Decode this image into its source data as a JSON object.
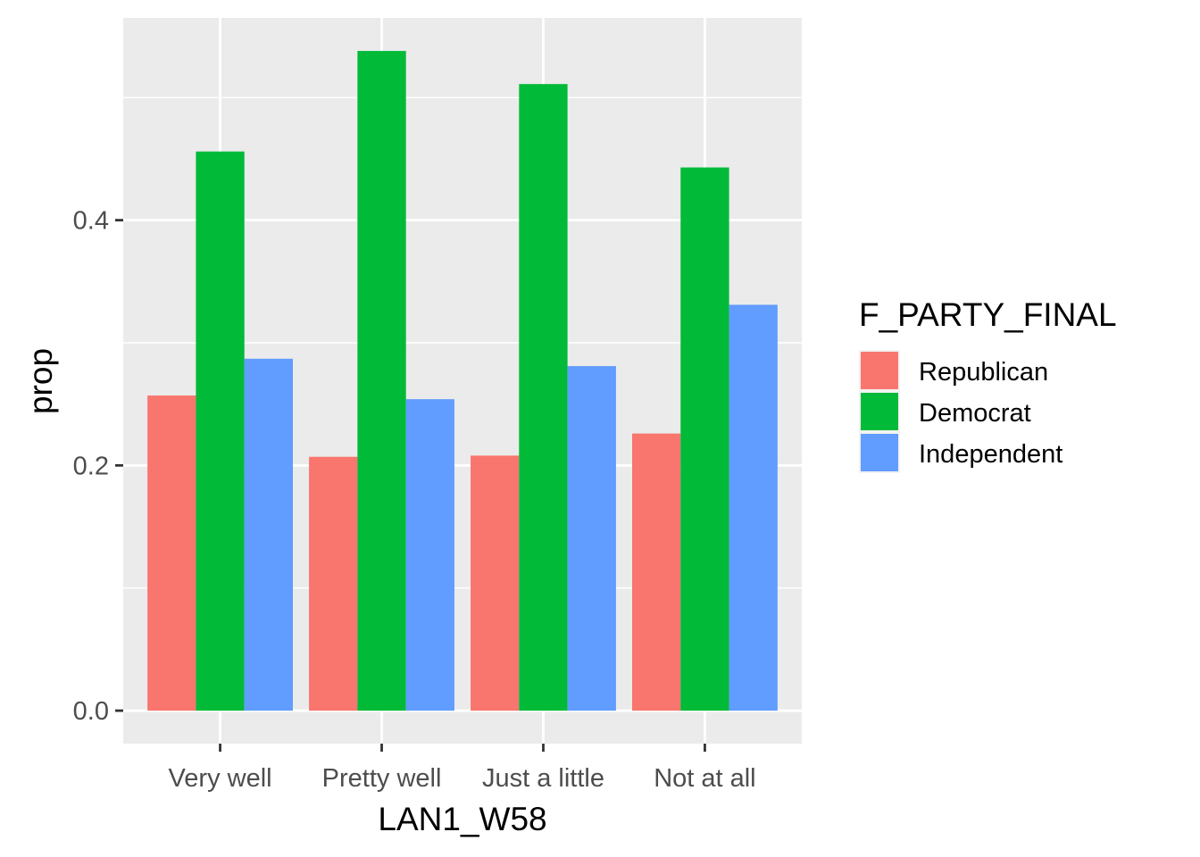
{
  "chart_data": {
    "type": "bar",
    "title": "",
    "xlabel": "LAN1_W58",
    "ylabel": "prop",
    "categories": [
      "Very well",
      "Pretty well",
      "Just a little",
      "Not at all"
    ],
    "series": [
      {
        "name": "Republican",
        "color": "#F8766D",
        "values": [
          0.257,
          0.207,
          0.208,
          0.226
        ]
      },
      {
        "name": "Democrat",
        "color": "#00BA38",
        "values": [
          0.456,
          0.538,
          0.511,
          0.443
        ]
      },
      {
        "name": "Independent",
        "color": "#619CFF",
        "values": [
          0.287,
          0.254,
          0.281,
          0.331
        ]
      }
    ],
    "ylim": [
      -0.0269,
      0.565
    ],
    "yticks": [
      0.0,
      0.2,
      0.4
    ],
    "ytick_labels": [
      "0.0",
      "0.2",
      "0.4"
    ],
    "y_minor_ticks": [
      0.1,
      0.3,
      0.5
    ],
    "legend": {
      "title": "F_PARTY_FINAL",
      "position": "right"
    },
    "grid": true,
    "panel_background": "#EBEBEB",
    "grid_color": "#FFFFFF"
  }
}
